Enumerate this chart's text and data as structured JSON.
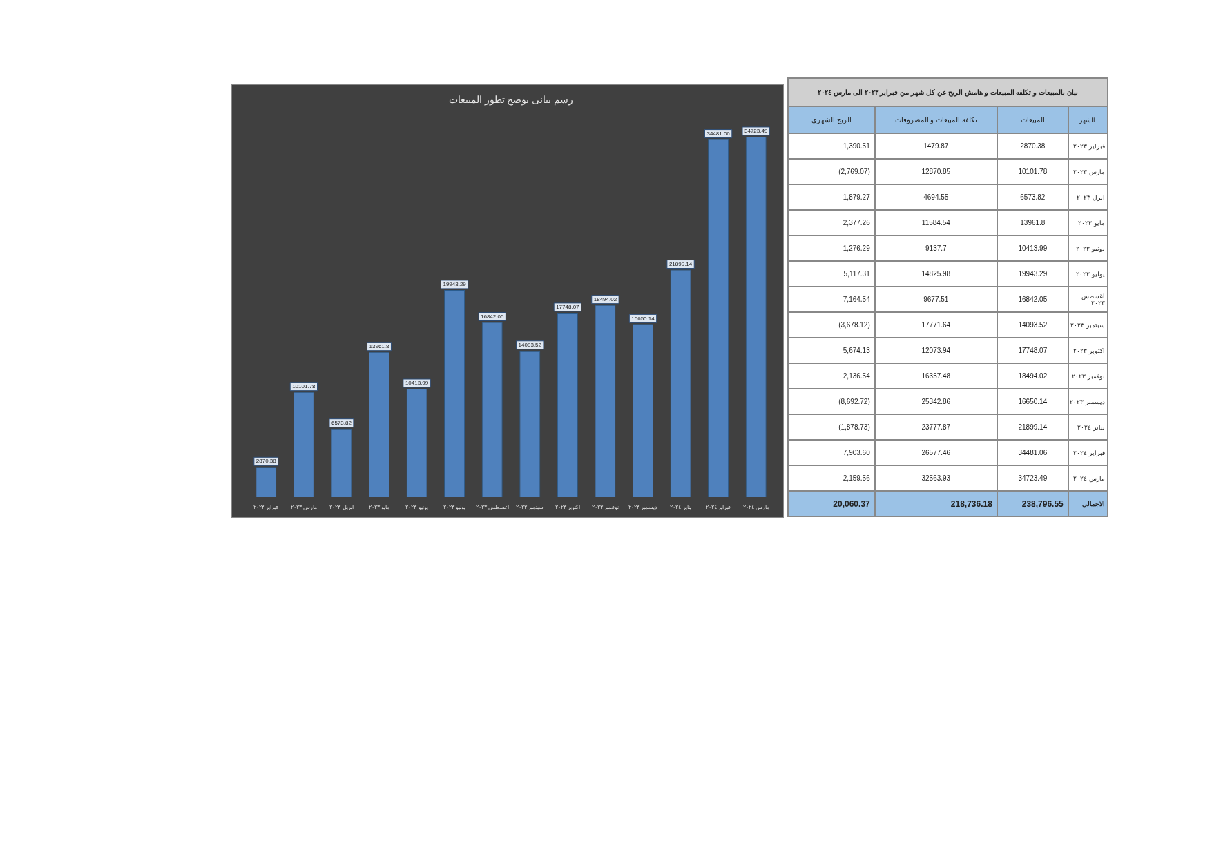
{
  "chart_data": [
    {
      "type": "bar",
      "title": "رسم بيانى يوضح تطور المبيعات",
      "categories": [
        "فبراير ٢٠٢٣",
        "مارس ٢٠٢٣",
        "ابريل ٢٠٢٣",
        "مايو ٢٠٢٣",
        "يونيو ٢٠٢٣",
        "يوليو ٢٠٢٣",
        "اغسطس ٢٠٢٣",
        "سبتمبر ٢٠٢٣",
        "اكتوبر ٢٠٢٣",
        "نوفمبر ٢٠٢٣",
        "ديسمبر ٢٠٢٣",
        "يناير ٢٠٢٤",
        "فبراير ٢٠٢٤",
        "مارس ٢٠٢٤"
      ],
      "values": [
        2870.38,
        10101.78,
        6573.82,
        13961.8,
        10413.99,
        19943.29,
        16842.05,
        14093.52,
        17748.07,
        18494.02,
        16650.14,
        21899.14,
        34481.06,
        34723.49
      ],
      "color": "#4f81bd",
      "data_labels": true,
      "tick_labels": "x",
      "grid": false,
      "legend": false
    },
    {
      "type": "other",
      "title": "بيان بالمبيعات و تكلفه المبيعات و هامش الربح عن كل شهر من فبراير ٢٠٢٣ الى مارس ٢٠٢٤",
      "annotations": [
        "الشهر",
        "المبيعات",
        "تكلفه المبيعات و المصروفات",
        "الربح الشهرى",
        "فبراير ٢٠٢٣",
        "2870.38",
        "1479.87",
        "1,390.51",
        "مارس ٢٠٢٣",
        "10101.78",
        "12870.85",
        "(2,769.07)",
        "ابرل ٢٠٢٣",
        "6573.82",
        "4694.55",
        "1,879.27",
        "مايو ٢٠٢٣",
        "13961.8",
        "11584.54",
        "2,377.26",
        "يونيو ٢٠٢٣",
        "10413.99",
        "9137.7",
        "1,276.29",
        "يوليو ٢٠٢٣",
        "19943.29",
        "14825.98",
        "5,117.31",
        "اغسطس ٢٠٢٣",
        "16842.05",
        "9677.51",
        "7,164.54",
        "سبتمبر ٢٠٢٣",
        "14093.52",
        "17771.64",
        "(3,678.12)",
        "اكتوبر ٢٠٢٣",
        "17748.07",
        "12073.94",
        "5,674.13",
        "نوفمبر ٢٠٢٣",
        "18494.02",
        "16357.48",
        "2,136.54",
        "ديسمبر ٢٠٢٣",
        "16650.14",
        "25342.86",
        "(8,692.72)",
        "يناير ٢٠٢٤",
        "21899.14",
        "23777.87",
        "(1,878.73)",
        "فبراير ٢٠٢٤",
        "34481.06",
        "26577.46",
        "7,903.60",
        "مارس ٢٠٢٤",
        "34723.49",
        "32563.93",
        "2,159.56",
        "الاجمالى",
        "238,796.55",
        "218,736.18",
        "20,060.37"
      ]
    }
  ]
}
